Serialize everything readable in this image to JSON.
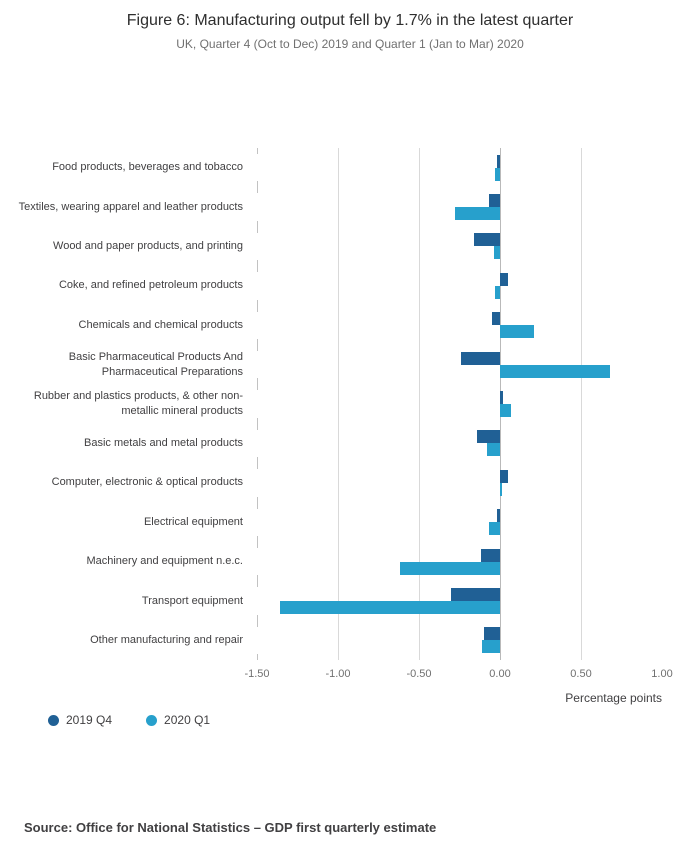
{
  "header": {
    "title": "Figure 6: Manufacturing output fell by 1.7% in the latest quarter",
    "subtitle": "UK, Quarter 4 (Oct to Dec) 2019 and Quarter 1 (Jan to Mar) 2020"
  },
  "chart_data": {
    "type": "bar",
    "orientation": "horizontal",
    "title": "Figure 6: Manufacturing output fell by 1.7% in the latest quarter",
    "subtitle": "UK, Quarter 4 (Oct to Dec) 2019 and Quarter 1 (Jan to Mar) 2020",
    "categories": [
      "Food products, beverages and tobacco",
      "Textiles, wearing apparel and leather products",
      "Wood and paper products, and printing",
      "Coke, and refined petroleum products",
      "Chemicals and chemical products",
      "Basic Pharmaceutical Products And Pharmaceutical Preparations",
      "Rubber and plastics products, & other non-metallic mineral products",
      "Basic metals and metal products",
      "Computer, electronic & optical products",
      "Electrical equipment",
      "Machinery and equipment n.e.c.",
      "Transport equipment",
      "Other manufacturing and repair"
    ],
    "series": [
      {
        "name": "2019 Q4",
        "color": "#206095",
        "values": [
          -0.02,
          -0.07,
          -0.16,
          0.05,
          -0.05,
          -0.24,
          0.02,
          -0.14,
          0.05,
          -0.02,
          -0.12,
          -0.3,
          -0.1
        ]
      },
      {
        "name": "2020 Q1",
        "color": "#27a0cc",
        "values": [
          -0.03,
          -0.28,
          -0.04,
          -0.03,
          0.21,
          0.68,
          0.07,
          -0.08,
          0.01,
          -0.07,
          -0.62,
          -1.36,
          -0.11
        ]
      }
    ],
    "xlabel": "Percentage points",
    "xlim": [
      -1.5,
      1.0
    ],
    "xticks": [
      -1.5,
      -1.0,
      -0.5,
      0.0,
      0.5,
      1.0
    ],
    "xtick_labels": [
      "-1.50",
      "-1.00",
      "-0.50",
      "0.00",
      "0.50",
      "1.00"
    ],
    "grid": true,
    "legend_position": "bottom-left"
  },
  "footer": {
    "source": "Source: Office for National Statistics – GDP first quarterly estimate"
  }
}
